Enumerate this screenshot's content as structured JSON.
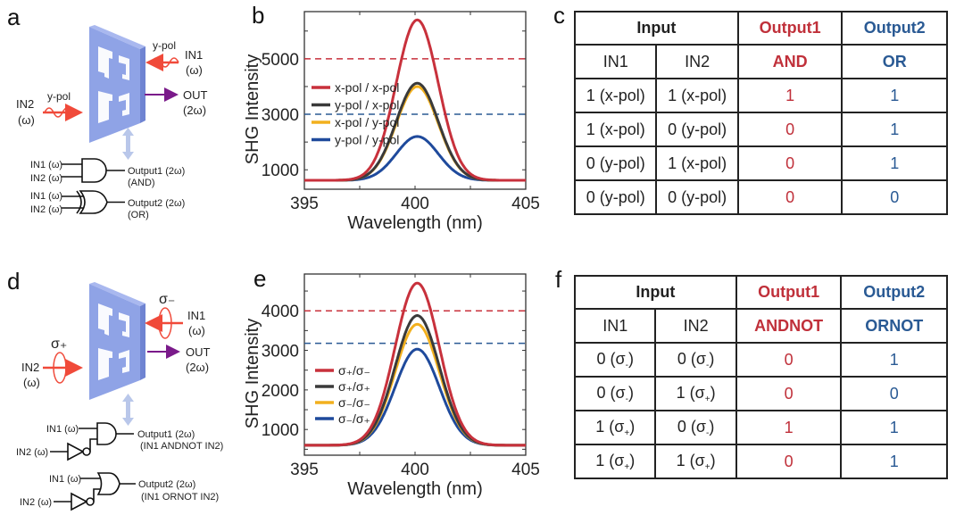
{
  "panels": {
    "a": {
      "label": "a",
      "in1_pol": "y-pol",
      "in1_label": "IN1",
      "in1_freq": "(ω)",
      "in2_pol": "y-pol",
      "in2_label": "IN2",
      "in2_freq": "(ω)",
      "out_label": "OUT",
      "out_freq": "(2ω)",
      "gates": [
        {
          "in1": "IN1 (ω)",
          "in2": "IN2 (ω)",
          "output": "Output1 (2ω)",
          "type": "(AND)"
        },
        {
          "in1": "IN1 (ω)",
          "in2": "IN2 (ω)",
          "output": "Output2 (2ω)",
          "type": "(OR)"
        }
      ]
    },
    "d": {
      "label": "d",
      "in1_pol": "σ₋",
      "in1_label": "IN1",
      "in1_freq": "(ω)",
      "in2_pol": "σ₊",
      "in2_label": "IN2",
      "in2_freq": "(ω)",
      "out_label": "OUT",
      "out_freq": "(2ω)",
      "gates": [
        {
          "in1": "IN1 (ω)",
          "in2": "IN2 (ω)",
          "output": "Output1 (2ω)",
          "type": "(IN1 ANDNOT IN2)"
        },
        {
          "in1": "IN1 (ω)",
          "in2": "IN2 (ω)",
          "output": "Output2 (2ω)",
          "type": "(IN1 ORNOT IN2)"
        }
      ]
    },
    "b": {
      "label": "b"
    },
    "e": {
      "label": "e"
    },
    "c": {
      "label": "c",
      "header_input": "Input",
      "header_out1": "Output1",
      "header_out2": "Output2",
      "sub_in1": "IN1",
      "sub_in2": "IN2",
      "sub_out1": "AND",
      "sub_out2": "OR",
      "rows": [
        [
          "1 (x-pol)",
          "1 (x-pol)",
          "1",
          "1"
        ],
        [
          "1 (x-pol)",
          "0 (y-pol)",
          "0",
          "1"
        ],
        [
          "0 (y-pol)",
          "1 (x-pol)",
          "0",
          "1"
        ],
        [
          "0 (y-pol)",
          "0 (y-pol)",
          "0",
          "0"
        ]
      ]
    },
    "f": {
      "label": "f",
      "header_input": "Input",
      "header_out1": "Output1",
      "header_out2": "Output2",
      "sub_in1": "IN1",
      "sub_in2": "IN2",
      "sub_out1": "ANDNOT",
      "sub_out2": "ORNOT",
      "rows": [
        [
          [
            "0 (σ",
            "-",
            ")"
          ],
          [
            "0 (σ",
            "-",
            ")"
          ],
          "0",
          "1"
        ],
        [
          [
            "0 (σ",
            "-",
            ")"
          ],
          [
            "1 (σ",
            "+",
            ")"
          ],
          "0",
          "0"
        ],
        [
          [
            "1 (σ",
            "+",
            ")"
          ],
          [
            "0 (σ",
            "-",
            ")"
          ],
          "1",
          "1"
        ],
        [
          [
            "1 (σ",
            "+",
            ")"
          ],
          [
            "1 (σ",
            "+",
            ")"
          ],
          "0",
          "1"
        ]
      ]
    }
  },
  "colors": {
    "red": "#c8313c",
    "black": "#3a3a3a",
    "yellow": "#f2b01e",
    "blue": "#1f4a9c",
    "red_dash": "#c8313c",
    "blue_dash": "#2a5a94",
    "meta": "#8fa3e6",
    "beam": "#f04a3a",
    "out_arrow": "#7a1a8a"
  },
  "chart_data": [
    {
      "id": "b",
      "type": "line",
      "title": "",
      "xlabel": "Wavelength (nm)",
      "ylabel": "SHG Intensity",
      "xlim": [
        395,
        405
      ],
      "ylim": [
        300,
        6700
      ],
      "xticks": [
        395,
        400,
        405
      ],
      "yticks": [
        1000,
        3000,
        5000
      ],
      "grid": false,
      "legend_position": "left",
      "baseline": 620,
      "center": 400.1,
      "width_nm": 0.95,
      "series": [
        {
          "name": "x-pol / x-pol",
          "color": "red",
          "peak": 6400
        },
        {
          "name": "y-pol / x-pol",
          "color": "black",
          "peak": 4120
        },
        {
          "name": "x-pol / y-pol",
          "color": "yellow",
          "peak": 4000
        },
        {
          "name": "y-pol / y-pol",
          "color": "blue",
          "peak": 2200
        }
      ],
      "thresholds": [
        {
          "value": 5000,
          "color": "red_dash"
        },
        {
          "value": 3000,
          "color": "blue_dash"
        }
      ]
    },
    {
      "id": "e",
      "type": "line",
      "title": "",
      "xlabel": "Wavelength (nm)",
      "ylabel": "SHG Intensity",
      "xlim": [
        395,
        405
      ],
      "ylim": [
        350,
        4930
      ],
      "xticks": [
        395,
        400,
        405
      ],
      "yticks": [
        1000,
        2000,
        3000,
        4000
      ],
      "grid": false,
      "legend_position": "left",
      "baseline": 600,
      "center": 400.1,
      "width_nm": 1.0,
      "series": [
        {
          "name": "σ₊/σ₋",
          "color": "red",
          "peak": 4700
        },
        {
          "name": "σ₊/σ₊",
          "color": "black",
          "peak": 3880
        },
        {
          "name": "σ₋/σ₋",
          "color": "yellow",
          "peak": 3660
        },
        {
          "name": "σ₋/σ₊",
          "color": "blue",
          "peak": 3030
        }
      ],
      "thresholds": [
        {
          "value": 4000,
          "color": "red_dash"
        },
        {
          "value": 3180,
          "color": "blue_dash"
        }
      ]
    }
  ]
}
